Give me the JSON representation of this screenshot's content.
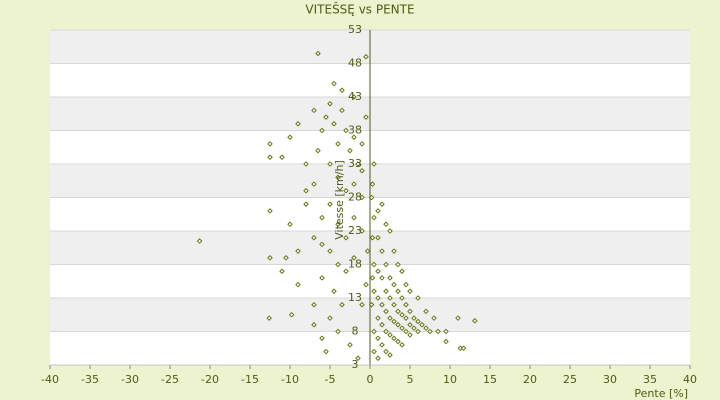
{
  "chart_data": {
    "type": "scatter",
    "title": "VITEŠSĘ vs PENTE",
    "x_label": "Pente [%]",
    "y_label": "Vitesse [km/h]",
    "color": "#5c6b00",
    "xlim": [
      -40,
      40
    ],
    "xticks": [
      -40,
      -35,
      -30,
      -25,
      -20,
      -15,
      -10,
      -5,
      0,
      5,
      10,
      15,
      20,
      25,
      30,
      35,
      40
    ],
    "ylim": [
      3,
      53
    ],
    "yticks": [
      3,
      8,
      13,
      18,
      23,
      28,
      33,
      38,
      43,
      48,
      53
    ],
    "grid": true,
    "x": [
      -6,
      -5.5,
      -5,
      -4.5,
      -4,
      -3.5,
      -3,
      -2.5,
      -2,
      -1.5,
      -1,
      -6.5,
      -7,
      -5,
      -4,
      -3,
      -2,
      -1,
      -8,
      -6,
      -5,
      -4,
      -3,
      -2,
      -1,
      -7,
      -5,
      -4,
      -3,
      -2,
      -6,
      -4.5,
      -3.5,
      -5,
      -4,
      -6,
      -5.5,
      -7,
      -9,
      -10,
      -11,
      -12.5,
      -12.5,
      -10,
      -9,
      -8,
      -12.5,
      -10.5,
      -11,
      -12.5,
      -9,
      -4.5,
      -3.5,
      -6.5,
      -0.5,
      -21.3,
      -12.6,
      -9.8,
      -7,
      -1,
      -0.5,
      -2,
      -7,
      -8,
      -6,
      0.5,
      1,
      1.5,
      2,
      2.5,
      3,
      3.5,
      4,
      4.5,
      5,
      5.5,
      6,
      6.5,
      7,
      7.5,
      0.5,
      1,
      1.5,
      2,
      2.5,
      3,
      3.5,
      4,
      4.5,
      5,
      5.5,
      6,
      0.5,
      1,
      1.5,
      2,
      2.5,
      3,
      3.5,
      4,
      4.5,
      5,
      1,
      1.5,
      2,
      2.5,
      3,
      3.5,
      4,
      0.5,
      1,
      1.5,
      2,
      2.5,
      0.3,
      0.5,
      0.2,
      1,
      2,
      1.5,
      3,
      2.5,
      3.5,
      4,
      4.5,
      5,
      6,
      7,
      8,
      8.5,
      9.5,
      11,
      11.3,
      11.7,
      13.1,
      9.5,
      0.3,
      0.3,
      0.2,
      0.5,
      1,
      -0.3,
      -0.5,
      -1,
      -1.5,
      -2.5
    ],
    "values": [
      38,
      40,
      42,
      39,
      36,
      41,
      38,
      35,
      37,
      33,
      36,
      35,
      30,
      33,
      31,
      29,
      30,
      28,
      27,
      25,
      27,
      24,
      22,
      25,
      23,
      22,
      20,
      18,
      17,
      19,
      16,
      14,
      12,
      10,
      8,
      7,
      5,
      9,
      20,
      24,
      34,
      36,
      34,
      37,
      39,
      33,
      26,
      19,
      17,
      19,
      15,
      45,
      44,
      49.5,
      49,
      21.5,
      10,
      10.5,
      12,
      32,
      40,
      43,
      41,
      29,
      21,
      25,
      22,
      20,
      18,
      16,
      15,
      14,
      13,
      12,
      11,
      10,
      9.5,
      9,
      8.5,
      8,
      18,
      17,
      16,
      14,
      13,
      12,
      11,
      10.5,
      10,
      9,
      8.5,
      8,
      14,
      13,
      12,
      11,
      10,
      9.5,
      9,
      8.5,
      8,
      7.5,
      10,
      9,
      8,
      7.5,
      7,
      6.5,
      6,
      8,
      7,
      6,
      5,
      4.5,
      30,
      33,
      28,
      26,
      24,
      27,
      20,
      23,
      18,
      17,
      15,
      14,
      13,
      11,
      10,
      8,
      8,
      10,
      5.5,
      5.5,
      9.6,
      6.5,
      22,
      16,
      12,
      5,
      4,
      20,
      15,
      12,
      4,
      6
    ]
  }
}
